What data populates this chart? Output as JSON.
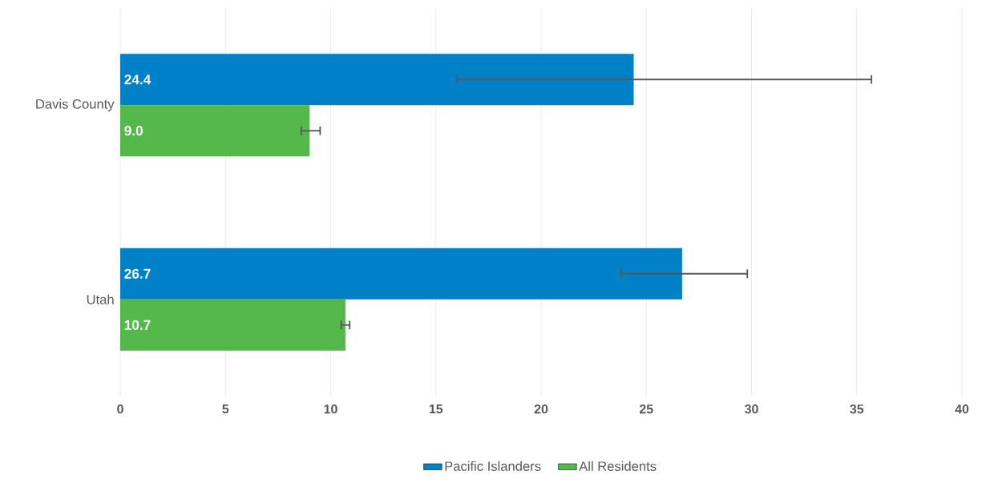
{
  "chart_data": {
    "type": "bar",
    "orientation": "horizontal",
    "categories": [
      "Davis County",
      "Utah"
    ],
    "series": [
      {
        "name": "Pacific Islanders",
        "color": "#0080c6",
        "values": [
          24.4,
          26.7
        ],
        "value_labels": [
          "24.4",
          "26.7"
        ],
        "errors": [
          [
            16.0,
            35.7
          ],
          [
            23.8,
            29.8
          ]
        ]
      },
      {
        "name": "All Residents",
        "color": "#55b84a",
        "values": [
          9.0,
          10.7
        ],
        "value_labels": [
          "9.0",
          "10.7"
        ],
        "errors": [
          [
            8.6,
            9.5
          ],
          [
            10.5,
            10.9
          ]
        ]
      }
    ],
    "xlim": [
      0,
      40
    ],
    "xticks": [
      0,
      5,
      10,
      15,
      20,
      25,
      30,
      35,
      40
    ],
    "grid": "x",
    "legend": "bottom"
  }
}
